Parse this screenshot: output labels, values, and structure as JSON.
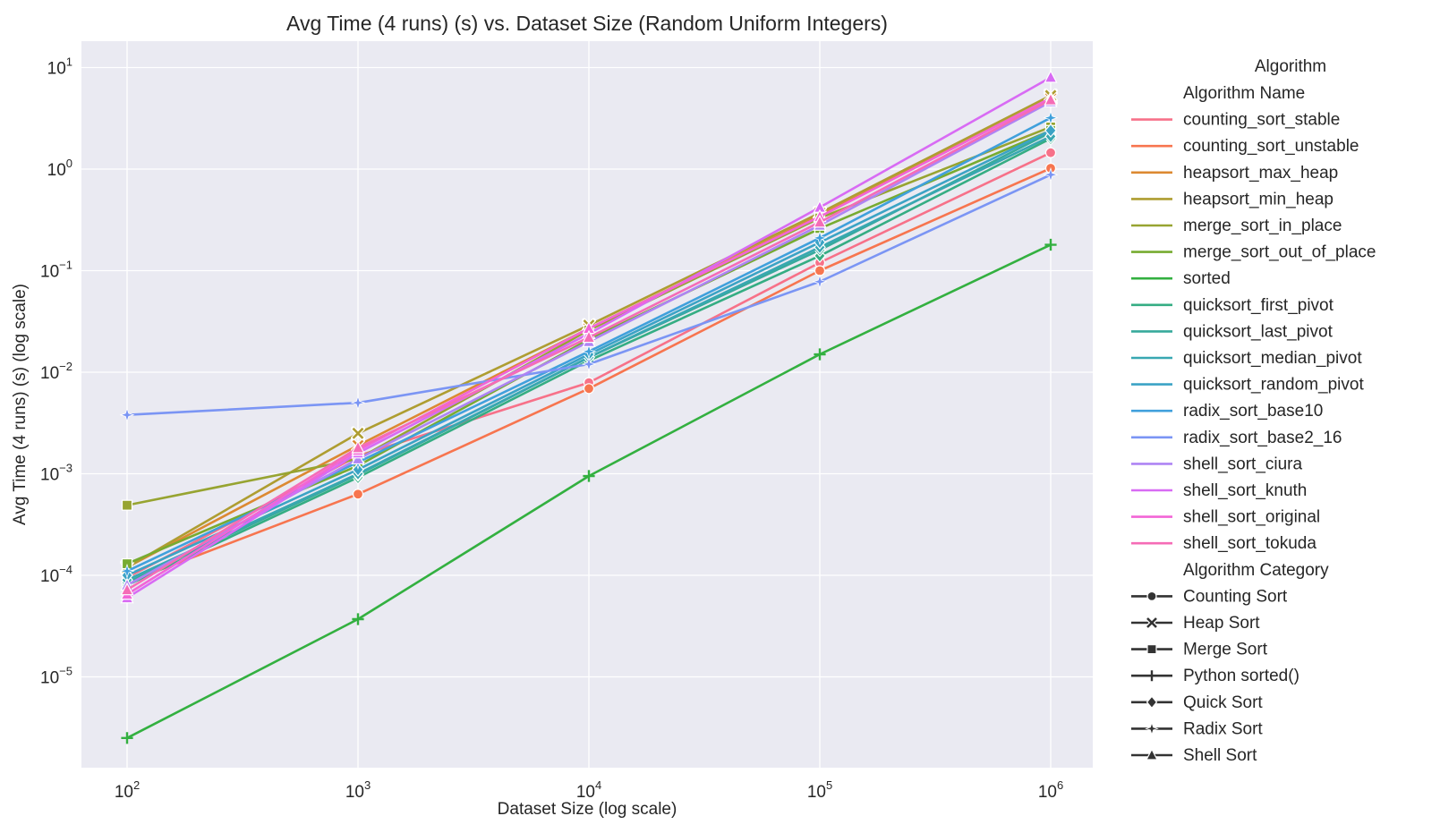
{
  "chart_data": {
    "type": "line",
    "title": "Avg Time (4 runs) (s) vs. Dataset Size (Random Uniform Integers)",
    "xlabel": "Dataset Size (log scale)",
    "ylabel": "Avg Time (4 runs) (s) (log scale)",
    "xscale": "log",
    "yscale": "log",
    "x_ticks": [
      {
        "value": 100,
        "base": "10",
        "exp": "2"
      },
      {
        "value": 1000,
        "base": "10",
        "exp": "3"
      },
      {
        "value": 10000,
        "base": "10",
        "exp": "4"
      },
      {
        "value": 100000,
        "base": "10",
        "exp": "5"
      },
      {
        "value": 1000000,
        "base": "10",
        "exp": "6"
      }
    ],
    "y_ticks": [
      {
        "value": 1e-05,
        "base": "10",
        "exp": "−5"
      },
      {
        "value": 0.0001,
        "base": "10",
        "exp": "−4"
      },
      {
        "value": 0.001,
        "base": "10",
        "exp": "−3"
      },
      {
        "value": 0.01,
        "base": "10",
        "exp": "−2"
      },
      {
        "value": 0.1,
        "base": "10",
        "exp": "−1"
      },
      {
        "value": 1,
        "base": "10",
        "exp": "0"
      },
      {
        "value": 10,
        "base": "10",
        "exp": "1"
      }
    ],
    "grid": true,
    "background": "#EAEAF2",
    "legend_position": "right",
    "x": [
      100,
      1000,
      10000,
      100000,
      1000000
    ],
    "series": [
      {
        "name": "counting_sort_stable",
        "category": "Counting Sort",
        "marker": "circle",
        "color": "#F77189",
        "values": [
          9.5e-05,
          0.0015,
          0.0079,
          0.12,
          1.45
        ]
      },
      {
        "name": "counting_sort_unstable",
        "category": "Counting Sort",
        "marker": "circle",
        "color": "#F7754F",
        "values": [
          8.5e-05,
          0.00063,
          0.0069,
          0.1,
          1.02
        ]
      },
      {
        "name": "heapsort_max_heap",
        "category": "Heap Sort",
        "marker": "x",
        "color": "#DC8932",
        "values": [
          0.00012,
          0.0019,
          0.027,
          0.35,
          5.0
        ]
      },
      {
        "name": "heapsort_min_heap",
        "category": "Heap Sort",
        "marker": "x",
        "color": "#AE9D31",
        "values": [
          0.00012,
          0.0025,
          0.029,
          0.37,
          5.3
        ]
      },
      {
        "name": "merge_sort_in_place",
        "category": "Merge Sort",
        "marker": "square",
        "color": "#97A431",
        "values": [
          0.00049,
          0.0014,
          0.026,
          0.33,
          2.6
        ]
      },
      {
        "name": "merge_sort_out_of_place",
        "category": "Merge Sort",
        "marker": "square",
        "color": "#77AB31",
        "values": [
          0.00013,
          0.0012,
          0.021,
          0.26,
          2.4
        ]
      },
      {
        "name": "sorted",
        "category": "Python sorted()",
        "marker": "plus",
        "color": "#33B040",
        "values": [
          2.5e-06,
          3.7e-05,
          0.00095,
          0.015,
          0.18
        ]
      },
      {
        "name": "quicksort_first_pivot",
        "category": "Quick Sort",
        "marker": "diamond",
        "color": "#35AD83",
        "values": [
          8e-05,
          0.00092,
          0.013,
          0.14,
          2.0
        ]
      },
      {
        "name": "quicksort_last_pivot",
        "category": "Quick Sort",
        "marker": "diamond",
        "color": "#37AA9C",
        "values": [
          8.5e-05,
          0.00098,
          0.014,
          0.16,
          2.3
        ]
      },
      {
        "name": "quicksort_median_pivot",
        "category": "Quick Sort",
        "marker": "diamond",
        "color": "#38A7B1",
        "values": [
          9e-05,
          0.001,
          0.014,
          0.17,
          2.1
        ]
      },
      {
        "name": "quicksort_random_pivot",
        "category": "Quick Sort",
        "marker": "diamond",
        "color": "#3BA3C5",
        "values": [
          0.0001,
          0.0011,
          0.015,
          0.19,
          2.4
        ]
      },
      {
        "name": "radix_sort_base10",
        "category": "Radix Sort",
        "marker": "star",
        "color": "#40A0DC",
        "values": [
          0.00011,
          0.0013,
          0.016,
          0.21,
          3.2
        ]
      },
      {
        "name": "radix_sort_base2_16",
        "category": "Radix Sort",
        "marker": "star",
        "color": "#7B95F4",
        "values": [
          0.0038,
          0.005,
          0.012,
          0.078,
          0.88
        ]
      },
      {
        "name": "shell_sort_ciura",
        "category": "Shell Sort",
        "marker": "triangle",
        "color": "#AE84F4",
        "values": [
          8e-05,
          0.0014,
          0.02,
          0.28,
          4.6
        ]
      },
      {
        "name": "shell_sort_knuth",
        "category": "Shell Sort",
        "marker": "triangle",
        "color": "#D86BF4",
        "values": [
          6e-05,
          0.0016,
          0.024,
          0.42,
          8.0
        ]
      },
      {
        "name": "shell_sort_original",
        "category": "Shell Sort",
        "marker": "triangle",
        "color": "#F265D6",
        "values": [
          6.5e-05,
          0.0017,
          0.027,
          0.34,
          5.0
        ]
      },
      {
        "name": "shell_sort_tokuda",
        "category": "Shell Sort",
        "marker": "triangle",
        "color": "#F56CB6",
        "values": [
          7.2e-05,
          0.0018,
          0.022,
          0.3,
          4.8
        ]
      }
    ],
    "legend": {
      "title": "Algorithm",
      "hue_title": "Algorithm Name",
      "style_title": "Algorithm Category",
      "styles": [
        {
          "label": "Counting Sort",
          "marker": "circle"
        },
        {
          "label": "Heap Sort",
          "marker": "x"
        },
        {
          "label": "Merge Sort",
          "marker": "square"
        },
        {
          "label": "Python sorted()",
          "marker": "plus"
        },
        {
          "label": "Quick Sort",
          "marker": "diamond"
        },
        {
          "label": "Radix Sort",
          "marker": "star"
        },
        {
          "label": "Shell Sort",
          "marker": "triangle"
        }
      ]
    }
  }
}
